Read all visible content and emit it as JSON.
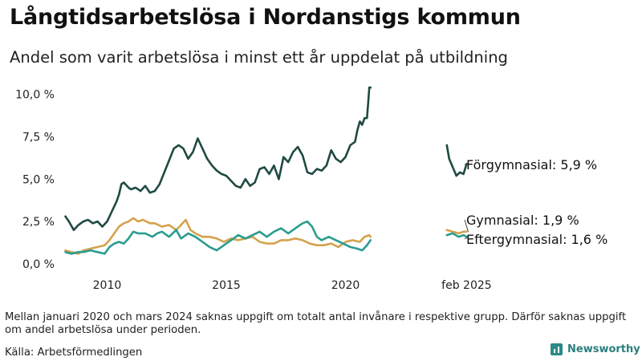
{
  "header": {
    "title": "Långtidsarbetslösa i Nordanstigs kommun",
    "subtitle": "Andel som varit arbetslösa i minst ett år uppdelat på utbildning"
  },
  "footer": {
    "note": "Mellan januari 2020 och mars 2024 saknas uppgift om totalt antal invånare i respektive grupp. Därför saknas uppgift om andel arbetslösa under perioden.",
    "source": "Källa: Arbetsförmedlingen",
    "brand": "Newsworthy",
    "brand_icon": "bar-chart-icon"
  },
  "chart_data": {
    "type": "line",
    "x_type": "year",
    "xlim": [
      2008.2,
      2025.2
    ],
    "ylim": [
      0,
      10.5
    ],
    "yticks": [
      0,
      2.5,
      5,
      7.5,
      10
    ],
    "ytick_labels": [
      "0,0 %",
      "2,5 %",
      "5,0 %",
      "7,5 %",
      "10,0 %"
    ],
    "xticks": [
      2010,
      2015,
      2020,
      2025.08
    ],
    "xtick_labels": [
      "2010",
      "2015",
      "2020",
      "feb 2025"
    ],
    "grid": false,
    "series": [
      {
        "name": "Förgymnasial",
        "end_label": "Förgymnasial: 5,9 %",
        "color": "#1f4a42",
        "segments": [
          [
            [
              2008.25,
              2.8
            ],
            [
              2008.4,
              2.5
            ],
            [
              2008.6,
              2.0
            ],
            [
              2008.8,
              2.3
            ],
            [
              2009.0,
              2.5
            ],
            [
              2009.2,
              2.6
            ],
            [
              2009.4,
              2.4
            ],
            [
              2009.6,
              2.5
            ],
            [
              2009.8,
              2.2
            ],
            [
              2010.0,
              2.5
            ],
            [
              2010.2,
              3.1
            ],
            [
              2010.4,
              3.7
            ],
            [
              2010.5,
              4.1
            ],
            [
              2010.6,
              4.7
            ],
            [
              2010.7,
              4.8
            ],
            [
              2010.9,
              4.5
            ],
            [
              2011.0,
              4.4
            ],
            [
              2011.2,
              4.5
            ],
            [
              2011.4,
              4.3
            ],
            [
              2011.6,
              4.6
            ],
            [
              2011.8,
              4.2
            ],
            [
              2012.0,
              4.3
            ],
            [
              2012.2,
              4.7
            ],
            [
              2012.4,
              5.4
            ],
            [
              2012.6,
              6.1
            ],
            [
              2012.8,
              6.8
            ],
            [
              2013.0,
              7.0
            ],
            [
              2013.2,
              6.8
            ],
            [
              2013.4,
              6.2
            ],
            [
              2013.6,
              6.6
            ],
            [
              2013.8,
              7.4
            ],
            [
              2014.0,
              6.8
            ],
            [
              2014.2,
              6.2
            ],
            [
              2014.4,
              5.8
            ],
            [
              2014.6,
              5.5
            ],
            [
              2014.8,
              5.3
            ],
            [
              2015.0,
              5.2
            ],
            [
              2015.2,
              4.9
            ],
            [
              2015.4,
              4.6
            ],
            [
              2015.6,
              4.5
            ],
            [
              2015.8,
              5.0
            ],
            [
              2016.0,
              4.6
            ],
            [
              2016.2,
              4.8
            ],
            [
              2016.4,
              5.6
            ],
            [
              2016.6,
              5.7
            ],
            [
              2016.8,
              5.3
            ],
            [
              2017.0,
              5.8
            ],
            [
              2017.2,
              5.0
            ],
            [
              2017.4,
              6.3
            ],
            [
              2017.6,
              6.0
            ],
            [
              2017.8,
              6.6
            ],
            [
              2018.0,
              6.9
            ],
            [
              2018.2,
              6.4
            ],
            [
              2018.4,
              5.4
            ],
            [
              2018.6,
              5.3
            ],
            [
              2018.8,
              5.6
            ],
            [
              2019.0,
              5.5
            ],
            [
              2019.2,
              5.8
            ],
            [
              2019.4,
              6.7
            ],
            [
              2019.6,
              6.2
            ],
            [
              2019.8,
              6.0
            ],
            [
              2020.0,
              6.3
            ],
            [
              2020.2,
              7.0
            ],
            [
              2020.4,
              7.2
            ],
            [
              2020.5,
              7.9
            ],
            [
              2020.6,
              8.4
            ],
            [
              2020.7,
              8.2
            ],
            [
              2020.8,
              8.6
            ],
            [
              2020.9,
              8.6
            ],
            [
              2020.95,
              9.5
            ],
            [
              2021.0,
              10.4
            ],
            [
              2021.05,
              10.4
            ]
          ],
          [
            [
              2024.25,
              7.0
            ],
            [
              2024.35,
              6.2
            ],
            [
              2024.5,
              5.7
            ],
            [
              2024.65,
              5.2
            ],
            [
              2024.8,
              5.4
            ],
            [
              2024.95,
              5.3
            ],
            [
              2025.08,
              5.9
            ]
          ]
        ]
      },
      {
        "name": "Gymnasial",
        "end_label": "Gymnasial: 1,9 %",
        "color": "#d4a24c",
        "segments": [
          [
            [
              2008.25,
              0.8
            ],
            [
              2008.5,
              0.7
            ],
            [
              2008.8,
              0.6
            ],
            [
              2009.0,
              0.8
            ],
            [
              2009.3,
              0.9
            ],
            [
              2009.6,
              1.0
            ],
            [
              2009.9,
              1.1
            ],
            [
              2010.1,
              1.4
            ],
            [
              2010.3,
              1.8
            ],
            [
              2010.5,
              2.2
            ],
            [
              2010.7,
              2.4
            ],
            [
              2010.9,
              2.5
            ],
            [
              2011.1,
              2.7
            ],
            [
              2011.3,
              2.5
            ],
            [
              2011.5,
              2.6
            ],
            [
              2011.8,
              2.4
            ],
            [
              2012.0,
              2.4
            ],
            [
              2012.3,
              2.2
            ],
            [
              2012.6,
              2.3
            ],
            [
              2012.9,
              2.0
            ],
            [
              2013.1,
              2.3
            ],
            [
              2013.3,
              2.6
            ],
            [
              2013.5,
              2.0
            ],
            [
              2013.7,
              1.8
            ],
            [
              2014.0,
              1.6
            ],
            [
              2014.3,
              1.6
            ],
            [
              2014.6,
              1.5
            ],
            [
              2014.9,
              1.3
            ],
            [
              2015.2,
              1.5
            ],
            [
              2015.5,
              1.4
            ],
            [
              2015.8,
              1.5
            ],
            [
              2016.1,
              1.6
            ],
            [
              2016.4,
              1.3
            ],
            [
              2016.7,
              1.2
            ],
            [
              2017.0,
              1.2
            ],
            [
              2017.3,
              1.4
            ],
            [
              2017.6,
              1.4
            ],
            [
              2017.9,
              1.5
            ],
            [
              2018.2,
              1.4
            ],
            [
              2018.5,
              1.2
            ],
            [
              2018.8,
              1.1
            ],
            [
              2019.1,
              1.1
            ],
            [
              2019.4,
              1.2
            ],
            [
              2019.7,
              1.0
            ],
            [
              2020.0,
              1.3
            ],
            [
              2020.3,
              1.4
            ],
            [
              2020.6,
              1.3
            ],
            [
              2020.8,
              1.6
            ],
            [
              2021.0,
              1.7
            ],
            [
              2021.05,
              1.6
            ]
          ],
          [
            [
              2024.25,
              2.0
            ],
            [
              2024.5,
              1.9
            ],
            [
              2024.75,
              1.8
            ],
            [
              2024.95,
              1.9
            ],
            [
              2025.08,
              1.9
            ]
          ]
        ]
      },
      {
        "name": "Eftergymnasial",
        "end_label": "Eftergymnasial: 1,6 %",
        "color": "#2a9d8f",
        "segments": [
          [
            [
              2008.25,
              0.7
            ],
            [
              2008.5,
              0.6
            ],
            [
              2008.8,
              0.7
            ],
            [
              2009.0,
              0.7
            ],
            [
              2009.3,
              0.8
            ],
            [
              2009.6,
              0.7
            ],
            [
              2009.9,
              0.6
            ],
            [
              2010.1,
              1.0
            ],
            [
              2010.3,
              1.2
            ],
            [
              2010.5,
              1.3
            ],
            [
              2010.7,
              1.2
            ],
            [
              2010.9,
              1.5
            ],
            [
              2011.1,
              1.9
            ],
            [
              2011.3,
              1.8
            ],
            [
              2011.6,
              1.8
            ],
            [
              2011.9,
              1.6
            ],
            [
              2012.1,
              1.8
            ],
            [
              2012.3,
              1.9
            ],
            [
              2012.6,
              1.6
            ],
            [
              2012.9,
              2.0
            ],
            [
              2013.1,
              1.5
            ],
            [
              2013.4,
              1.8
            ],
            [
              2013.7,
              1.6
            ],
            [
              2014.0,
              1.3
            ],
            [
              2014.3,
              1.0
            ],
            [
              2014.6,
              0.8
            ],
            [
              2014.9,
              1.1
            ],
            [
              2015.2,
              1.4
            ],
            [
              2015.5,
              1.7
            ],
            [
              2015.8,
              1.5
            ],
            [
              2016.1,
              1.7
            ],
            [
              2016.4,
              1.9
            ],
            [
              2016.7,
              1.6
            ],
            [
              2017.0,
              1.9
            ],
            [
              2017.3,
              2.1
            ],
            [
              2017.6,
              1.8
            ],
            [
              2017.9,
              2.1
            ],
            [
              2018.2,
              2.4
            ],
            [
              2018.4,
              2.5
            ],
            [
              2018.6,
              2.2
            ],
            [
              2018.8,
              1.6
            ],
            [
              2019.0,
              1.4
            ],
            [
              2019.3,
              1.6
            ],
            [
              2019.6,
              1.4
            ],
            [
              2019.9,
              1.2
            ],
            [
              2020.2,
              1.0
            ],
            [
              2020.5,
              0.9
            ],
            [
              2020.7,
              0.8
            ],
            [
              2020.9,
              1.1
            ],
            [
              2021.05,
              1.4
            ]
          ],
          [
            [
              2024.25,
              1.7
            ],
            [
              2024.5,
              1.8
            ],
            [
              2024.75,
              1.6
            ],
            [
              2024.95,
              1.7
            ],
            [
              2025.08,
              1.6
            ]
          ]
        ]
      }
    ]
  }
}
